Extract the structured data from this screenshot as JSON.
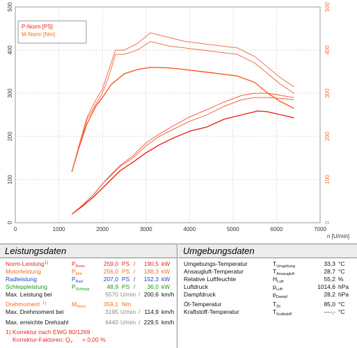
{
  "chart_data": {
    "type": "line",
    "legend": [
      "P-Norm [PS]",
      "M-Norm [Nm]"
    ],
    "legend_colors": [
      "#e8251a",
      "#ff6a1a"
    ],
    "xlabel": "n [U/min]",
    "xlim": [
      0,
      7000
    ],
    "ylim": [
      0,
      500
    ],
    "x_ticks": [
      "0",
      "1000",
      "2000",
      "3000",
      "4000",
      "5000",
      "6000",
      "7000"
    ],
    "y_ticks": [
      "0",
      "100",
      "200",
      "300",
      "400",
      "500"
    ],
    "grid": true,
    "series": [
      {
        "color": "#e8251a",
        "x": [
          1300,
          1500,
          1800,
          2000,
          2200,
          2400,
          2700,
          3000,
          3300,
          3600,
          4000,
          4400,
          4800,
          5200,
          5570,
          5800,
          6100,
          6400
        ],
        "y": [
          20,
          35,
          60,
          80,
          100,
          120,
          140,
          162,
          180,
          195,
          212,
          222,
          240,
          250,
          259,
          257,
          250,
          243
        ]
      },
      {
        "color": "#f05030",
        "x": [
          1300,
          1500,
          1800,
          2000,
          2200,
          2400,
          2700,
          3000,
          3300,
          3600,
          4000,
          4400,
          4800,
          5200,
          5500,
          5800,
          6100,
          6400
        ],
        "y": [
          20,
          37,
          65,
          90,
          110,
          130,
          150,
          178,
          200,
          215,
          235,
          250,
          270,
          285,
          290,
          290,
          288,
          285
        ]
      },
      {
        "color": "#f05030",
        "x": [
          1300,
          1500,
          1800,
          2000,
          2200,
          2400,
          2700,
          3000,
          3300,
          3600,
          4000,
          4400,
          4800,
          5200,
          5500,
          5800,
          6100,
          6400
        ],
        "y": [
          20,
          37,
          65,
          90,
          112,
          132,
          155,
          185,
          205,
          223,
          245,
          262,
          280,
          295,
          300,
          300,
          295,
          290
        ]
      },
      {
        "color": "#ff5a1a",
        "x": [
          1300,
          1450,
          1650,
          1850,
          2000,
          2200,
          2500,
          2800,
          3100,
          3500,
          3900,
          4300,
          4700,
          5100,
          5500,
          5800,
          6100,
          6400
        ],
        "y": [
          118,
          170,
          230,
          270,
          290,
          320,
          345,
          355,
          360,
          359,
          355,
          350,
          345,
          340,
          325,
          300,
          280,
          265
        ]
      },
      {
        "color": "#f06040",
        "x": [
          1300,
          1450,
          1650,
          1850,
          2000,
          2150,
          2300,
          2500,
          2800,
          3100,
          3500,
          3900,
          4300,
          4700,
          5100,
          5500,
          5800,
          6100,
          6400
        ],
        "y": [
          118,
          170,
          240,
          275,
          300,
          340,
          390,
          390,
          400,
          420,
          410,
          405,
          400,
          395,
          390,
          370,
          345,
          320,
          300
        ]
      },
      {
        "color": "#f06040",
        "x": [
          1300,
          1450,
          1650,
          1850,
          2000,
          2150,
          2300,
          2500,
          2800,
          3100,
          3500,
          3900,
          4300,
          4700,
          5100,
          5500,
          5800,
          6100,
          6400
        ],
        "y": [
          118,
          175,
          245,
          285,
          310,
          355,
          400,
          400,
          415,
          440,
          430,
          420,
          415,
          410,
          405,
          385,
          360,
          335,
          315
        ]
      }
    ]
  },
  "left": {
    "title": "Leistungsdaten",
    "rows": [
      {
        "label": "Norm-Leistung",
        "note": "1)",
        "sym": "P",
        "sub": "Norm",
        "v1": "259,0",
        "u1": "PS",
        "sep": "/",
        "v2": "190,5",
        "u2": "kW"
      },
      {
        "label": "Motorleistung",
        "sym": "P",
        "sub": "Mot",
        "v1": "256,0",
        "u1": "PS",
        "sep": "/",
        "v2": "188,3",
        "u2": "kW"
      },
      {
        "label": "Radleistung",
        "sym": "P",
        "sub": "Rad",
        "v1": "207,0",
        "u1": "PS",
        "sep": "/",
        "v2": "152,3",
        "u2": "kW"
      },
      {
        "label": "Schleppleistung",
        "sym": "P",
        "sub": "Schlepp",
        "v1": "48,9",
        "u1": "PS",
        "sep": "/",
        "v2": "36,0",
        "u2": "kW"
      },
      {
        "label": "Max. Leistung bei",
        "v1": "5570",
        "u1": "U/min",
        "sep": "/",
        "v2": "200,6",
        "u2": "km/h"
      },
      {
        "label": "Drehmoment",
        "note": "1)",
        "sym": "M",
        "sub": "Norm",
        "v1": "359,1",
        "u1": "Nm"
      },
      {
        "label": "Max. Drehmoment bei",
        "v1": "3195",
        "u1": "U/min",
        "sep": "/",
        "v2": "114,9",
        "u2": "km/h"
      },
      {
        "label": "Max. erreichte Drehzahl",
        "v1": "6440",
        "u1": "U/min",
        "sep": "/",
        "v2": "229,5",
        "u2": "km/h"
      }
    ],
    "footnote1": "1) Korrektur nach EWG 80/1269",
    "footnote2": "Korrektur-Faktoren: Q",
    "footnote2_sub": "V",
    "footnote2_val": "=   0,00 %"
  },
  "right": {
    "title": "Umgebungsdaten",
    "rows": [
      {
        "label": "Umgebungs-Temperatur",
        "sym": "T",
        "sub": "Umgebung",
        "v": "33,3",
        "u": "°C"
      },
      {
        "label": "Ansaugluft-Temperatur",
        "sym": "T",
        "sub": "Ansaugluft",
        "v": "28,7",
        "u": "°C"
      },
      {
        "label": "Relative Luftfeuchte",
        "sym": "H",
        "sub": "Luft",
        "v": "55,2",
        "u": "%"
      },
      {
        "label": "Luftdruck",
        "sym": "p",
        "sub": "Luft",
        "v": "1014,6",
        "u": "hPa"
      },
      {
        "label": "Dampfdruck",
        "sym": "p",
        "sub": "Dampf",
        "v": "28,2",
        "u": "hPa"
      },
      {
        "label": "Öl-Temperatur",
        "sym": "T",
        "sub": "Öl",
        "v": "85,0",
        "u": "°C"
      },
      {
        "label": "Kraftstoff-Temperatur",
        "sym": "T",
        "sub": "Kraftstoff",
        "v": "----,-",
        "u": "°C"
      }
    ]
  }
}
